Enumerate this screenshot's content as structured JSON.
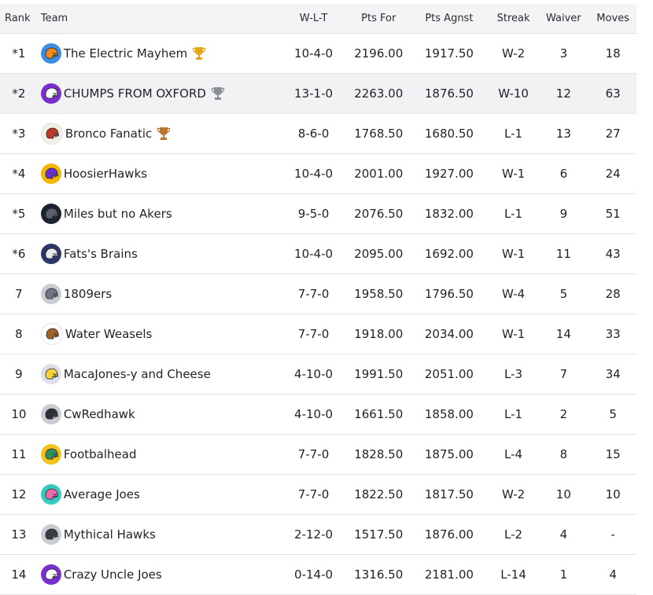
{
  "headers": {
    "rank": "Rank",
    "team": "Team",
    "wlt": "W-L-T",
    "pts_for": "Pts For",
    "pts_agnst": "Pts Agnst",
    "streak": "Streak",
    "waiver": "Waiver",
    "moves": "Moves"
  },
  "rows": [
    {
      "rank": "*1",
      "team": "The Electric Mayhem",
      "wlt": "10-4-0",
      "pts_for": "2196.00",
      "pts_agnst": "1917.50",
      "streak": "W-2",
      "waiver": "3",
      "moves": "18",
      "avatar_color": "#3d8ee0",
      "helmet_color": "#f08a1c",
      "trophy": "gold"
    },
    {
      "rank": "*2",
      "team": "CHUMPS FROM OXFORD",
      "wlt": "13-1-0",
      "pts_for": "2263.00",
      "pts_agnst": "1876.50",
      "streak": "W-10",
      "waiver": "12",
      "moves": "63",
      "avatar_color": "#7b2fd0",
      "helmet_color": "#ffffff",
      "trophy": "silver"
    },
    {
      "rank": "*3",
      "team": "Bronco Fanatic",
      "wlt": "8-6-0",
      "pts_for": "1768.50",
      "pts_agnst": "1680.50",
      "streak": "L-1",
      "waiver": "13",
      "moves": "27",
      "avatar_color": "#f3efe6",
      "helmet_color": "#c0392b",
      "trophy": "bronze"
    },
    {
      "rank": "*4",
      "team": "HoosierHawks",
      "wlt": "10-4-0",
      "pts_for": "2001.00",
      "pts_agnst": "1927.00",
      "streak": "W-1",
      "waiver": "6",
      "moves": "24",
      "avatar_color": "#f2b705",
      "helmet_color": "#6a2fd0",
      "trophy": ""
    },
    {
      "rank": "*5",
      "team": "Miles but no Akers",
      "wlt": "9-5-0",
      "pts_for": "2076.50",
      "pts_agnst": "1832.00",
      "streak": "L-1",
      "waiver": "9",
      "moves": "51",
      "avatar_color": "#1c2230",
      "helmet_color": "#5a6270",
      "trophy": ""
    },
    {
      "rank": "*6",
      "team": "Fats's Brains",
      "wlt": "10-4-0",
      "pts_for": "2095.00",
      "pts_agnst": "1692.00",
      "streak": "W-1",
      "waiver": "11",
      "moves": "43",
      "avatar_color": "#2b3566",
      "helmet_color": "#e8e8f0",
      "trophy": ""
    },
    {
      "rank": "7",
      "team": "1809ers",
      "wlt": "7-7-0",
      "pts_for": "1958.50",
      "pts_agnst": "1796.50",
      "streak": "W-4",
      "waiver": "5",
      "moves": "28",
      "avatar_color": "#c9ccd3",
      "helmet_color": "#6f7682",
      "trophy": ""
    },
    {
      "rank": "8",
      "team": "Water Weasels",
      "wlt": "7-7-0",
      "pts_for": "1918.00",
      "pts_agnst": "2034.00",
      "streak": "W-1",
      "waiver": "14",
      "moves": "33",
      "avatar_color": "#ffffff",
      "helmet_color": "#a0622a",
      "trophy": ""
    },
    {
      "rank": "9",
      "team": "MacaJones-y and Cheese",
      "wlt": "4-10-0",
      "pts_for": "1991.50",
      "pts_agnst": "2051.00",
      "streak": "L-3",
      "waiver": "7",
      "moves": "34",
      "avatar_color": "#dde0e6",
      "helmet_color": "#f4d23a",
      "trophy": ""
    },
    {
      "rank": "10",
      "team": "CwRedhawk",
      "wlt": "4-10-0",
      "pts_for": "1661.50",
      "pts_agnst": "1858.00",
      "streak": "L-1",
      "waiver": "2",
      "moves": "5",
      "avatar_color": "#c9ccd3",
      "helmet_color": "#2e3138",
      "trophy": ""
    },
    {
      "rank": "11",
      "team": "Footbalhead",
      "wlt": "7-7-0",
      "pts_for": "1828.50",
      "pts_agnst": "1875.00",
      "streak": "L-4",
      "waiver": "8",
      "moves": "15",
      "avatar_color": "#f2c21b",
      "helmet_color": "#2f8f5b",
      "trophy": ""
    },
    {
      "rank": "12",
      "team": "Average Joes",
      "wlt": "7-7-0",
      "pts_for": "1822.50",
      "pts_agnst": "1817.50",
      "streak": "W-2",
      "waiver": "10",
      "moves": "10",
      "avatar_color": "#36c9c0",
      "helmet_color": "#f06aa8",
      "trophy": ""
    },
    {
      "rank": "13",
      "team": "Mythical Hawks",
      "wlt": "2-12-0",
      "pts_for": "1517.50",
      "pts_agnst": "1876.00",
      "streak": "L-2",
      "waiver": "4",
      "moves": "-",
      "avatar_color": "#c9ccd3",
      "helmet_color": "#3a3d44",
      "trophy": ""
    },
    {
      "rank": "14",
      "team": "Crazy Uncle Joes",
      "wlt": "0-14-0",
      "pts_for": "1316.50",
      "pts_agnst": "2181.00",
      "streak": "L-14",
      "waiver": "1",
      "moves": "4",
      "avatar_color": "#7b2fd0",
      "helmet_color": "#ffffff",
      "trophy": ""
    }
  ],
  "trophy_colors": {
    "gold": "#e2a91c",
    "silver": "#8a8f98",
    "bronze": "#b8752e"
  },
  "highlight_row_index": 1
}
